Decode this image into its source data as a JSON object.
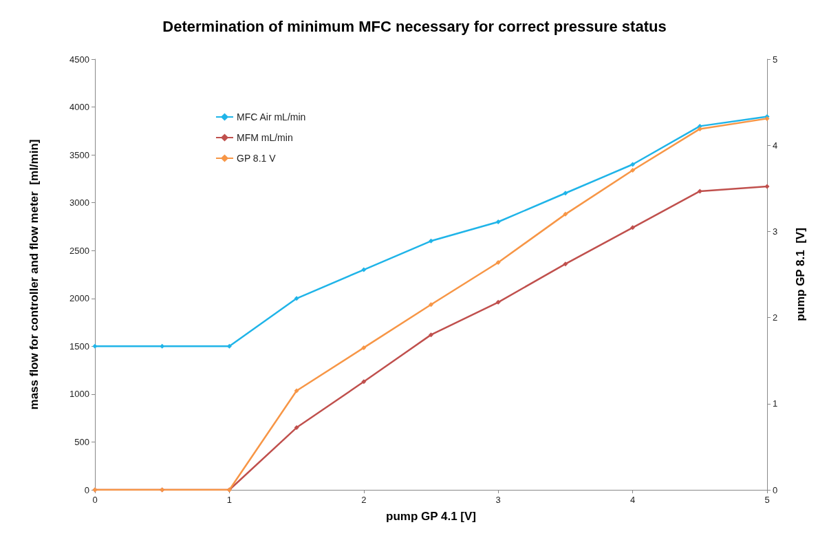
{
  "chart_data": {
    "type": "line",
    "title": "Determination of minimum MFC necessary for correct pressure status",
    "xlabel": "pump GP 4.1 [V]",
    "ylabel": "mass flow for controller and flow meter  [ml/min]",
    "y2label": "pump GP 8.1  [V]",
    "x": [
      0,
      0.5,
      1,
      1.5,
      2,
      2.5,
      3,
      3.5,
      4,
      4.5,
      5
    ],
    "series": [
      {
        "name": "MFC Air mL/min",
        "color": "#1fb4e8",
        "values": [
          1500,
          1500,
          1500,
          2000,
          2300,
          2600,
          2800,
          3100,
          3400,
          3800,
          3900
        ]
      },
      {
        "name": "MFM mL/min",
        "color": "#c0504d",
        "values": [
          0,
          0,
          0,
          650,
          1130,
          1620,
          1960,
          2360,
          2740,
          3120,
          3170
        ]
      },
      {
        "name": "GP 8.1 V",
        "color": "#f79646",
        "axis": "y2",
        "values": [
          0,
          0,
          0,
          1.15,
          1.65,
          2.15,
          2.64,
          3.2,
          3.71,
          4.19,
          4.31
        ]
      }
    ],
    "xlim": [
      0,
      5
    ],
    "xticks": [
      0,
      1,
      2,
      3,
      4,
      5
    ],
    "ylim": [
      0,
      4500
    ],
    "yticks": [
      0,
      500,
      1000,
      1500,
      2000,
      2500,
      3000,
      3500,
      4000,
      4500
    ],
    "y2lim": [
      0,
      5
    ],
    "y2ticks": [
      0,
      1,
      2,
      3,
      4,
      5
    ],
    "grid": false,
    "legend": "top left",
    "marker": "diamond",
    "line_style": "solid"
  }
}
